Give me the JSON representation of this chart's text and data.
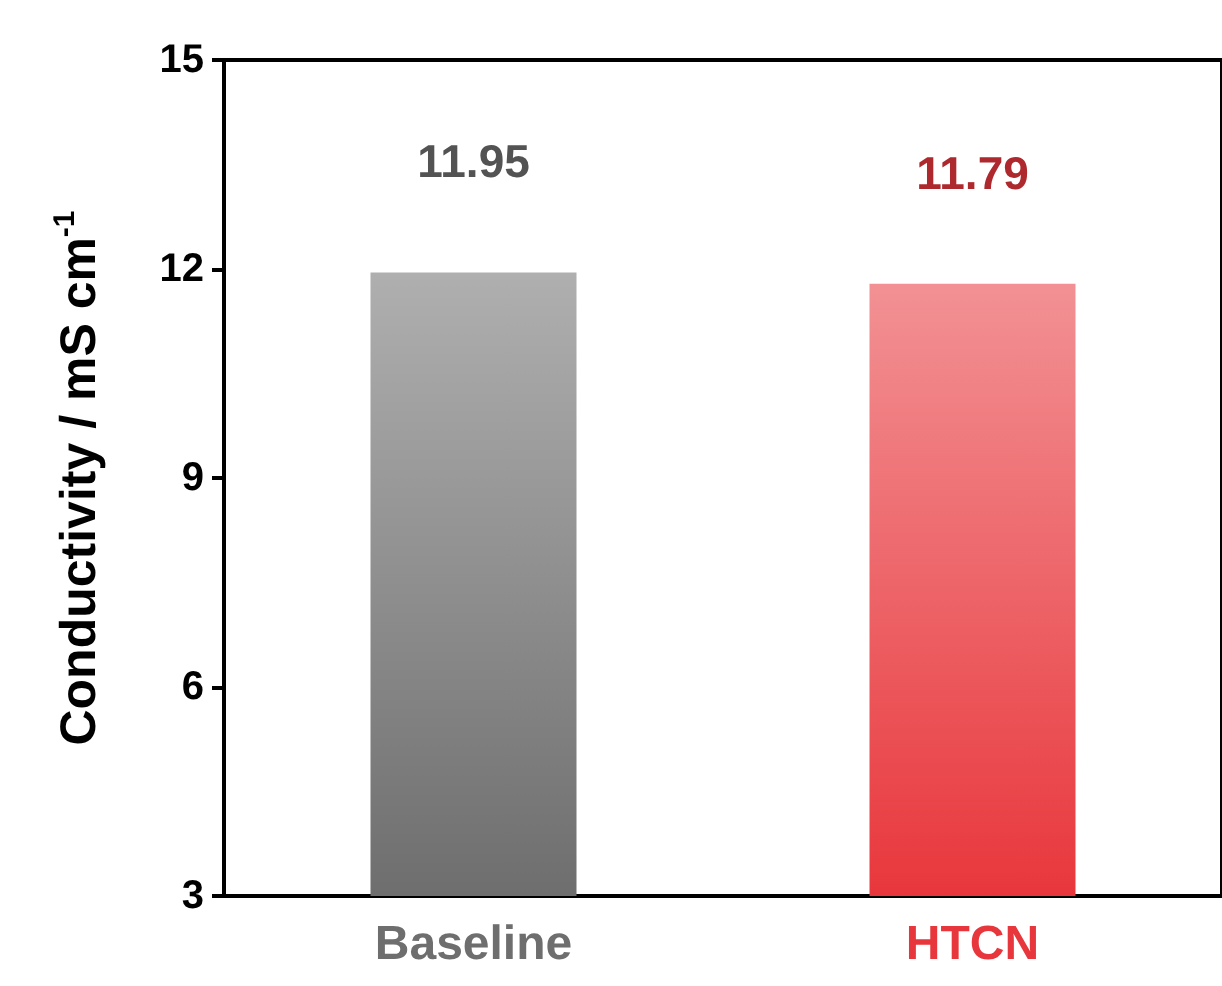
{
  "chart_data": {
    "type": "bar",
    "categories": [
      "Baseline",
      "HTCN"
    ],
    "values": [
      11.95,
      11.79
    ],
    "colors": [
      "#6e6e6e",
      "#e8373c"
    ],
    "value_labels": [
      "11.95",
      "11.79"
    ],
    "ylabel": "Conductivity / mS cm$^{-1}$",
    "ylim": [
      3,
      15
    ],
    "yticks": [
      3,
      6,
      9,
      12,
      15
    ],
    "grid": false
  }
}
